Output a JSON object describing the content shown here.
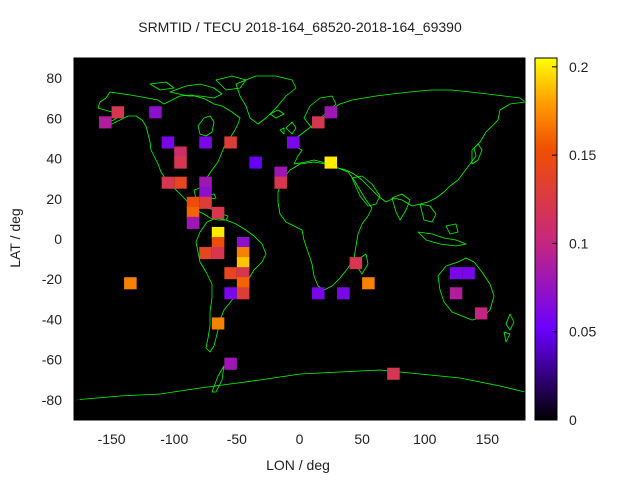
{
  "chart_data": {
    "type": "heatmap",
    "title": "SRMTID / TECU 2018-164_68520-2018-164_69390",
    "xlabel": "LON / deg",
    "ylabel": "LAT / deg",
    "xlim": [
      -180,
      180
    ],
    "ylim": [
      -90,
      90
    ],
    "x_ticks": [
      {
        "value": -150,
        "label": "-150"
      },
      {
        "value": -100,
        "label": "-100"
      },
      {
        "value": -50,
        "label": "-50"
      },
      {
        "value": 0,
        "label": "0"
      },
      {
        "value": 50,
        "label": "50"
      },
      {
        "value": 100,
        "label": "100"
      },
      {
        "value": 150,
        "label": "150"
      }
    ],
    "y_ticks": [
      {
        "value": 80,
        "label": "80"
      },
      {
        "value": 60,
        "label": "60"
      },
      {
        "value": 40,
        "label": "40"
      },
      {
        "value": 20,
        "label": "20"
      },
      {
        "value": 0,
        "label": "0"
      },
      {
        "value": -20,
        "label": "-20"
      },
      {
        "value": -40,
        "label": "-40"
      },
      {
        "value": -60,
        "label": "-60"
      },
      {
        "value": -80,
        "label": "-80"
      }
    ],
    "colorbar": {
      "range": [
        0,
        0.205
      ],
      "ticks": [
        {
          "value": 0,
          "label": "0"
        },
        {
          "value": 0.05,
          "label": "0.05"
        },
        {
          "value": 0.1,
          "label": "0.1"
        },
        {
          "value": 0.15,
          "label": "0.15"
        },
        {
          "value": 0.2,
          "label": "0.2"
        }
      ]
    },
    "cell_size_deg": 10,
    "background": "#000000",
    "coastline_color": "#00ff00",
    "cells": [
      {
        "lon": -155,
        "lat": 58,
        "v": 0.09
      },
      {
        "lon": -145,
        "lat": 63,
        "v": 0.12
      },
      {
        "lon": -115,
        "lat": 63,
        "v": 0.07
      },
      {
        "lon": -105,
        "lat": 48,
        "v": 0.06
      },
      {
        "lon": -95,
        "lat": 43,
        "v": 0.11
      },
      {
        "lon": -95,
        "lat": 38,
        "v": 0.12
      },
      {
        "lon": -75,
        "lat": 48,
        "v": 0.06
      },
      {
        "lon": -55,
        "lat": 48,
        "v": 0.13
      },
      {
        "lon": -35,
        "lat": 38,
        "v": 0.05
      },
      {
        "lon": -5,
        "lat": 48,
        "v": 0.06
      },
      {
        "lon": 15,
        "lat": 58,
        "v": 0.12
      },
      {
        "lon": 25,
        "lat": 63,
        "v": 0.08
      },
      {
        "lon": 25,
        "lat": 38,
        "v": 0.2
      },
      {
        "lon": -15,
        "lat": 33,
        "v": 0.08
      },
      {
        "lon": -15,
        "lat": 28,
        "v": 0.12
      },
      {
        "lon": -105,
        "lat": 28,
        "v": 0.12
      },
      {
        "lon": -95,
        "lat": 28,
        "v": 0.14
      },
      {
        "lon": -75,
        "lat": 28,
        "v": 0.08
      },
      {
        "lon": -75,
        "lat": 23,
        "v": 0.07
      },
      {
        "lon": -85,
        "lat": 18,
        "v": 0.15
      },
      {
        "lon": -75,
        "lat": 18,
        "v": 0.13
      },
      {
        "lon": -85,
        "lat": 13,
        "v": 0.16
      },
      {
        "lon": -65,
        "lat": 13,
        "v": 0.12
      },
      {
        "lon": -85,
        "lat": 8,
        "v": 0.08
      },
      {
        "lon": -65,
        "lat": 3,
        "v": 0.2
      },
      {
        "lon": -65,
        "lat": -2,
        "v": 0.15
      },
      {
        "lon": -45,
        "lat": -2,
        "v": 0.07
      },
      {
        "lon": -75,
        "lat": -7,
        "v": 0.14
      },
      {
        "lon": -65,
        "lat": -7,
        "v": 0.12
      },
      {
        "lon": -45,
        "lat": -7,
        "v": 0.17
      },
      {
        "lon": -45,
        "lat": -12,
        "v": 0.19
      },
      {
        "lon": -55,
        "lat": -17,
        "v": 0.14
      },
      {
        "lon": -45,
        "lat": -17,
        "v": 0.12
      },
      {
        "lon": -45,
        "lat": -22,
        "v": 0.16
      },
      {
        "lon": -55,
        "lat": -27,
        "v": 0.06
      },
      {
        "lon": -45,
        "lat": -27,
        "v": 0.13
      },
      {
        "lon": -135,
        "lat": -22,
        "v": 0.17
      },
      {
        "lon": -65,
        "lat": -42,
        "v": 0.17
      },
      {
        "lon": -55,
        "lat": -62,
        "v": 0.08
      },
      {
        "lon": 15,
        "lat": -27,
        "v": 0.06
      },
      {
        "lon": 35,
        "lat": -27,
        "v": 0.06
      },
      {
        "lon": 45,
        "lat": -12,
        "v": 0.12
      },
      {
        "lon": 55,
        "lat": -22,
        "v": 0.17
      },
      {
        "lon": 125,
        "lat": -17,
        "v": 0.06
      },
      {
        "lon": 135,
        "lat": -17,
        "v": 0.06
      },
      {
        "lon": 125,
        "lat": -27,
        "v": 0.09
      },
      {
        "lon": 145,
        "lat": -37,
        "v": 0.1
      },
      {
        "lon": 75,
        "lat": -67,
        "v": 0.12
      }
    ]
  }
}
